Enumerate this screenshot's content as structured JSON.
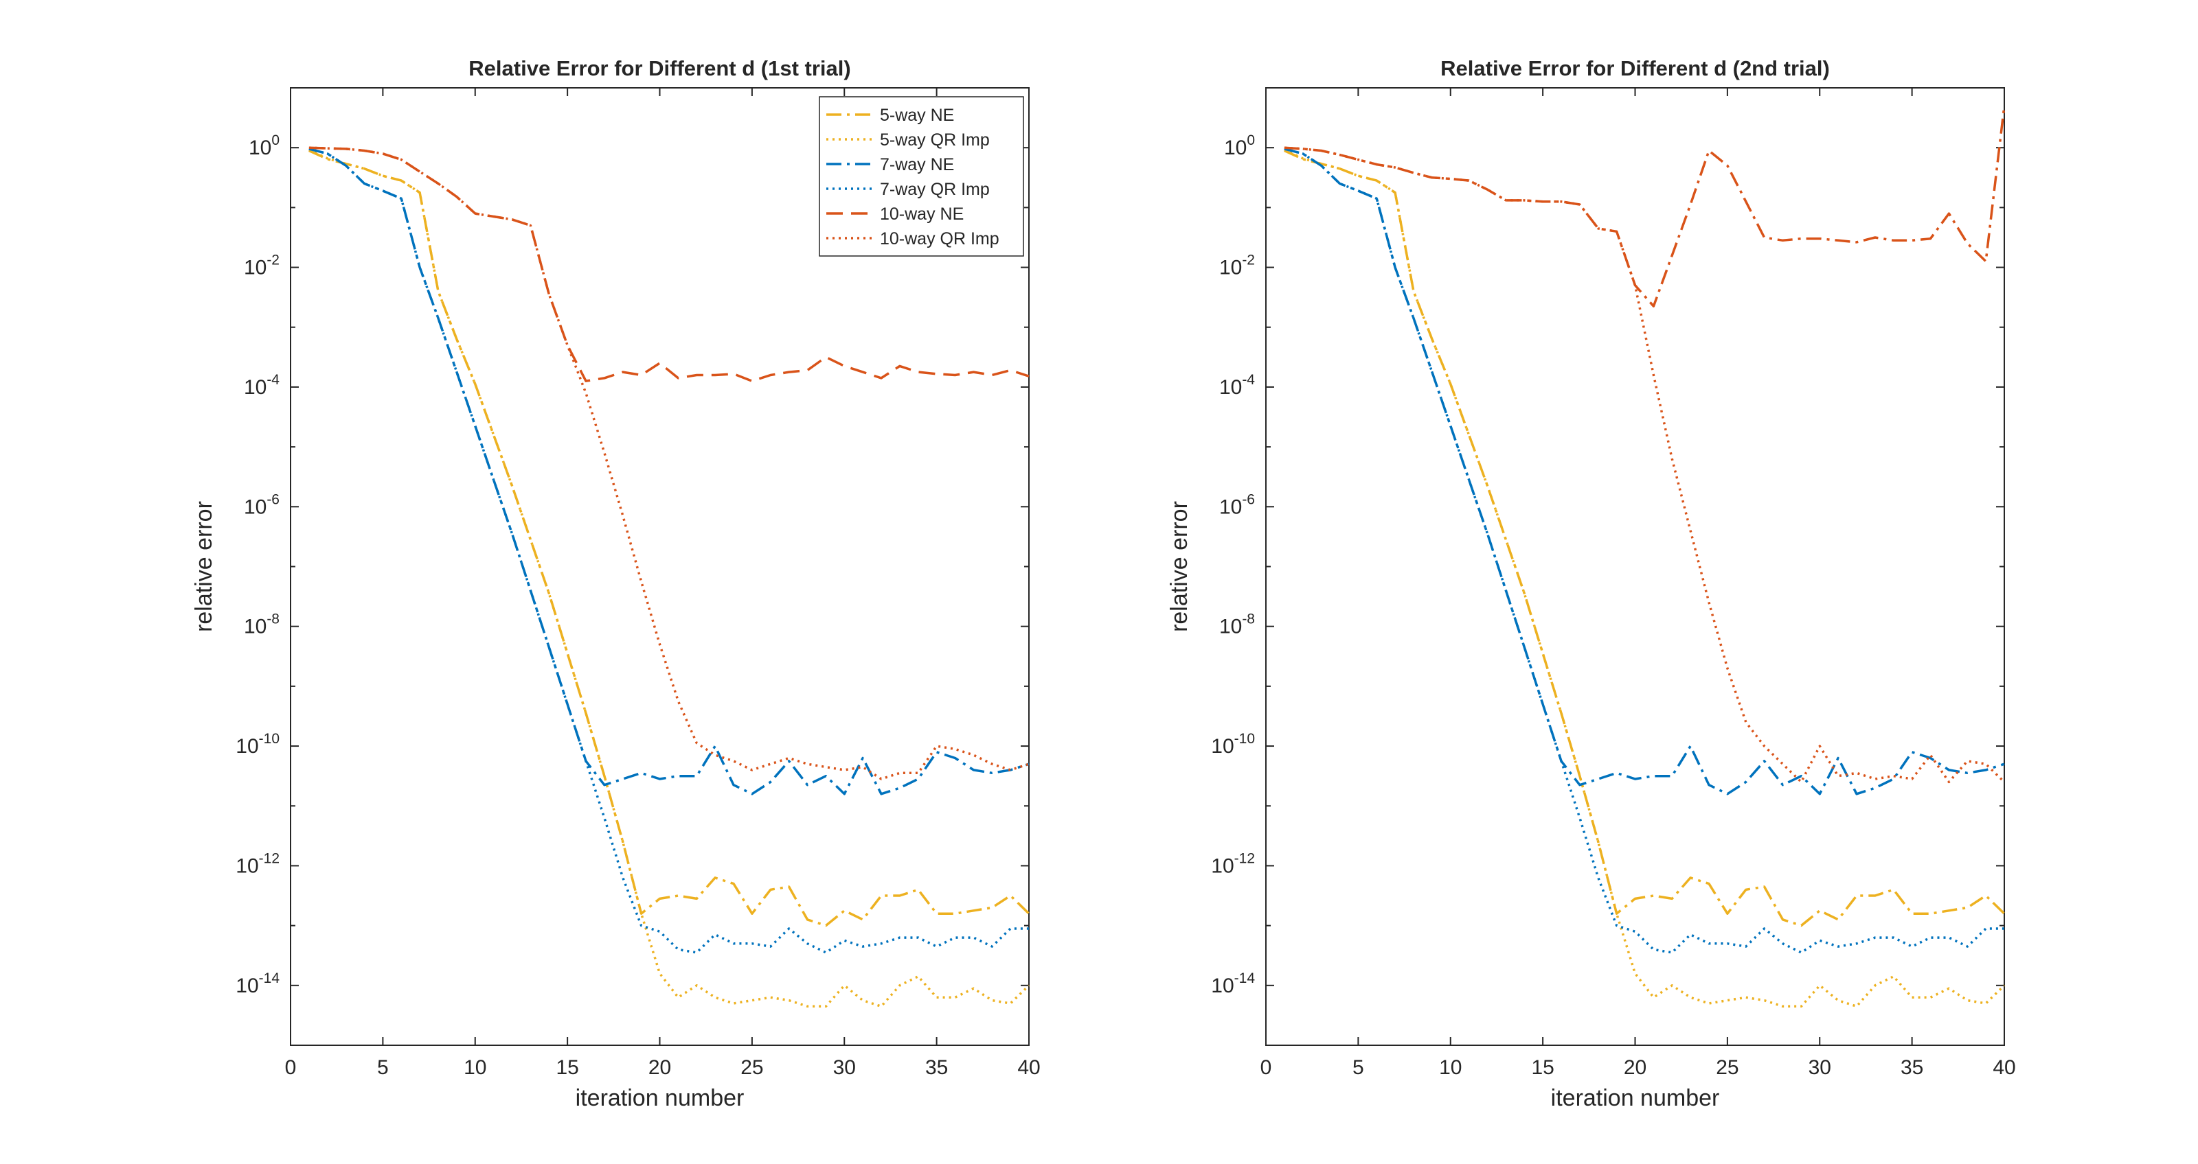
{
  "chart_data": [
    {
      "type": "line",
      "title": "Relative Error for Different d (1st trial)",
      "xlabel": "iteration number",
      "ylabel": "relative error",
      "xlim": [
        0,
        40
      ],
      "ylim_log10": [
        -15,
        1
      ],
      "yscale": "log",
      "xticks": [
        "0",
        "5",
        "10",
        "15",
        "20",
        "25",
        "30",
        "35",
        "40"
      ],
      "yticks": [
        {
          "base": "10",
          "exp": "0"
        },
        {
          "base": "10",
          "exp": "-2"
        },
        {
          "base": "10",
          "exp": "-4"
        },
        {
          "base": "10",
          "exp": "-6"
        },
        {
          "base": "10",
          "exp": "-8"
        },
        {
          "base": "10",
          "exp": "-10"
        },
        {
          "base": "10",
          "exp": "-12"
        },
        {
          "base": "10",
          "exp": "-14"
        }
      ],
      "grid": false,
      "legend_position": "top-right",
      "legend_entries": [
        "5-way NE",
        "5-way QR Imp",
        "7-way NE",
        "7-way QR Imp",
        "10-way NE",
        "10-way QR Imp"
      ],
      "x": [
        1,
        2,
        3,
        4,
        5,
        6,
        7,
        8,
        9,
        10,
        11,
        12,
        13,
        14,
        15,
        16,
        17,
        18,
        19,
        20,
        21,
        22,
        23,
        24,
        25,
        26,
        27,
        28,
        29,
        30,
        31,
        32,
        33,
        34,
        35,
        36,
        37,
        38,
        39,
        40
      ],
      "series": [
        {
          "name": "5-way NE",
          "color": "#EDB120",
          "dash": "dashdot",
          "log10_values": [
            -0.05,
            -0.19,
            -0.27,
            -0.35,
            -0.47,
            -0.55,
            -0.75,
            -2.4,
            -3.2,
            -3.95,
            -4.8,
            -5.65,
            -6.55,
            -7.45,
            -8.45,
            -9.45,
            -10.5,
            -11.6,
            -12.8,
            -12.55,
            -12.5,
            -12.55,
            -12.2,
            -12.3,
            -12.8,
            -12.4,
            -12.35,
            -12.9,
            -13.0,
            -12.75,
            -12.9,
            -12.5,
            -12.5,
            -12.4,
            -12.8,
            -12.8,
            -12.75,
            -12.7,
            -12.5,
            -12.8
          ]
        },
        {
          "name": "5-way QR Imp",
          "color": "#EDB120",
          "dash": "dotted",
          "log10_values": [
            -0.04,
            -0.18,
            -0.27,
            -0.35,
            -0.47,
            -0.55,
            -0.75,
            -2.4,
            -3.2,
            -3.95,
            -4.8,
            -5.65,
            -6.55,
            -7.45,
            -8.45,
            -9.45,
            -10.5,
            -11.6,
            -12.8,
            -13.8,
            -14.2,
            -14.0,
            -14.2,
            -14.3,
            -14.25,
            -14.2,
            -14.25,
            -14.35,
            -14.35,
            -14.0,
            -14.25,
            -14.35,
            -14.0,
            -13.85,
            -14.2,
            -14.2,
            -14.05,
            -14.25,
            -14.3,
            -14.0
          ]
        },
        {
          "name": "7-way NE",
          "color": "#0072BD",
          "dash": "dashdot",
          "log10_values": [
            -0.02,
            -0.1,
            -0.3,
            -0.6,
            -0.72,
            -0.85,
            -2.0,
            -2.85,
            -3.75,
            -4.65,
            -5.55,
            -6.45,
            -7.4,
            -8.35,
            -9.3,
            -10.25,
            -10.65,
            -10.55,
            -10.45,
            -10.55,
            -10.5,
            -10.5,
            -10.0,
            -10.65,
            -10.8,
            -10.6,
            -10.25,
            -10.65,
            -10.5,
            -10.8,
            -10.2,
            -10.8,
            -10.7,
            -10.55,
            -10.1,
            -10.2,
            -10.4,
            -10.45,
            -10.4,
            -10.3
          ]
        },
        {
          "name": "7-way QR Imp",
          "color": "#0072BD",
          "dash": "dotted",
          "log10_values": [
            -0.02,
            -0.1,
            -0.3,
            -0.6,
            -0.72,
            -0.85,
            -2.0,
            -2.85,
            -3.75,
            -4.65,
            -5.55,
            -6.45,
            -7.4,
            -8.35,
            -9.3,
            -10.25,
            -11.2,
            -12.2,
            -13.0,
            -13.1,
            -13.4,
            -13.45,
            -13.15,
            -13.3,
            -13.3,
            -13.35,
            -13.05,
            -13.3,
            -13.45,
            -13.25,
            -13.35,
            -13.3,
            -13.2,
            -13.2,
            -13.35,
            -13.2,
            -13.2,
            -13.35,
            -13.05,
            -13.05
          ]
        },
        {
          "name": "10-way NE",
          "color": "#D95319",
          "dash": "dashed",
          "log10_values": [
            0.0,
            -0.01,
            -0.02,
            -0.05,
            -0.1,
            -0.2,
            -0.4,
            -0.6,
            -0.82,
            -1.1,
            -1.15,
            -1.2,
            -1.3,
            -2.45,
            -3.3,
            -3.9,
            -3.85,
            -3.75,
            -3.8,
            -3.6,
            -3.85,
            -3.8,
            -3.8,
            -3.78,
            -3.9,
            -3.8,
            -3.75,
            -3.72,
            -3.5,
            -3.65,
            -3.75,
            -3.85,
            -3.65,
            -3.75,
            -3.78,
            -3.8,
            -3.75,
            -3.8,
            -3.72,
            -3.82
          ]
        },
        {
          "name": "10-way QR Imp",
          "color": "#D95319",
          "dash": "dotted",
          "log10_values": [
            0.0,
            -0.01,
            -0.02,
            -0.05,
            -0.1,
            -0.2,
            -0.4,
            -0.6,
            -0.82,
            -1.1,
            -1.15,
            -1.2,
            -1.3,
            -2.45,
            -3.3,
            -4.1,
            -5.1,
            -6.15,
            -7.25,
            -8.3,
            -9.25,
            -9.95,
            -10.15,
            -10.25,
            -10.4,
            -10.3,
            -10.2,
            -10.3,
            -10.35,
            -10.4,
            -10.35,
            -10.55,
            -10.45,
            -10.45,
            -10.0,
            -10.05,
            -10.15,
            -10.3,
            -10.4,
            -10.3
          ]
        }
      ]
    },
    {
      "type": "line",
      "title": "Relative Error for Different d (2nd trial)",
      "xlabel": "iteration number",
      "ylabel": "relative error",
      "xlim": [
        0,
        40
      ],
      "ylim_log10": [
        -15,
        1
      ],
      "yscale": "log",
      "xticks": [
        "0",
        "5",
        "10",
        "15",
        "20",
        "25",
        "30",
        "35",
        "40"
      ],
      "yticks": [
        {
          "base": "10",
          "exp": "0"
        },
        {
          "base": "10",
          "exp": "-2"
        },
        {
          "base": "10",
          "exp": "-4"
        },
        {
          "base": "10",
          "exp": "-6"
        },
        {
          "base": "10",
          "exp": "-8"
        },
        {
          "base": "10",
          "exp": "-10"
        },
        {
          "base": "10",
          "exp": "-12"
        },
        {
          "base": "10",
          "exp": "-14"
        }
      ],
      "grid": false,
      "legend_position": "none",
      "x": [
        1,
        2,
        3,
        4,
        5,
        6,
        7,
        8,
        9,
        10,
        11,
        12,
        13,
        14,
        15,
        16,
        17,
        18,
        19,
        20,
        21,
        22,
        23,
        24,
        25,
        26,
        27,
        28,
        29,
        30,
        31,
        32,
        33,
        34,
        35,
        36,
        37,
        38,
        39,
        40
      ],
      "series": [
        {
          "name": "5-way NE",
          "color": "#EDB120",
          "dash": "dashdot",
          "log10_values": [
            -0.05,
            -0.19,
            -0.27,
            -0.35,
            -0.47,
            -0.55,
            -0.75,
            -2.4,
            -3.2,
            -3.95,
            -4.8,
            -5.65,
            -6.55,
            -7.45,
            -8.45,
            -9.45,
            -10.5,
            -11.6,
            -12.8,
            -12.55,
            -12.5,
            -12.55,
            -12.2,
            -12.3,
            -12.8,
            -12.4,
            -12.35,
            -12.9,
            -13.0,
            -12.75,
            -12.9,
            -12.5,
            -12.5,
            -12.4,
            -12.8,
            -12.8,
            -12.75,
            -12.7,
            -12.5,
            -12.8
          ]
        },
        {
          "name": "5-way QR Imp",
          "color": "#EDB120",
          "dash": "dotted",
          "log10_values": [
            -0.04,
            -0.18,
            -0.27,
            -0.35,
            -0.47,
            -0.55,
            -0.75,
            -2.4,
            -3.2,
            -3.95,
            -4.8,
            -5.65,
            -6.55,
            -7.45,
            -8.45,
            -9.45,
            -10.5,
            -11.6,
            -12.8,
            -13.8,
            -14.2,
            -14.0,
            -14.2,
            -14.3,
            -14.25,
            -14.2,
            -14.25,
            -14.35,
            -14.35,
            -14.0,
            -14.25,
            -14.35,
            -14.0,
            -13.85,
            -14.2,
            -14.2,
            -14.05,
            -14.25,
            -14.3,
            -14.0
          ]
        },
        {
          "name": "7-way NE",
          "color": "#0072BD",
          "dash": "dashdot",
          "log10_values": [
            -0.02,
            -0.1,
            -0.3,
            -0.6,
            -0.72,
            -0.85,
            -2.0,
            -2.85,
            -3.75,
            -4.65,
            -5.55,
            -6.45,
            -7.4,
            -8.35,
            -9.3,
            -10.25,
            -10.65,
            -10.55,
            -10.45,
            -10.55,
            -10.5,
            -10.5,
            -10.0,
            -10.65,
            -10.8,
            -10.6,
            -10.25,
            -10.65,
            -10.5,
            -10.8,
            -10.2,
            -10.8,
            -10.7,
            -10.55,
            -10.1,
            -10.2,
            -10.4,
            -10.45,
            -10.4,
            -10.3
          ]
        },
        {
          "name": "7-way QR Imp",
          "color": "#0072BD",
          "dash": "dotted",
          "log10_values": [
            -0.02,
            -0.1,
            -0.3,
            -0.6,
            -0.72,
            -0.85,
            -2.0,
            -2.85,
            -3.75,
            -4.65,
            -5.55,
            -6.45,
            -7.4,
            -8.35,
            -9.3,
            -10.25,
            -11.2,
            -12.2,
            -13.0,
            -13.1,
            -13.4,
            -13.45,
            -13.15,
            -13.3,
            -13.3,
            -13.35,
            -13.05,
            -13.3,
            -13.45,
            -13.25,
            -13.35,
            -13.3,
            -13.2,
            -13.2,
            -13.35,
            -13.2,
            -13.2,
            -13.35,
            -13.05,
            -13.05
          ]
        },
        {
          "name": "10-way NE",
          "color": "#D95319",
          "dash": "dashdot",
          "log10_values": [
            0.0,
            -0.02,
            -0.05,
            -0.12,
            -0.2,
            -0.28,
            -0.33,
            -0.42,
            -0.5,
            -0.52,
            -0.55,
            -0.7,
            -0.88,
            -0.88,
            -0.9,
            -0.9,
            -0.95,
            -1.35,
            -1.4,
            -2.3,
            -2.65,
            -1.8,
            -0.95,
            -0.05,
            -0.3,
            -0.9,
            -1.5,
            -1.55,
            -1.52,
            -1.52,
            -1.55,
            -1.58,
            -1.5,
            -1.55,
            -1.55,
            -1.52,
            -1.1,
            -1.6,
            -1.9,
            0.7
          ]
        },
        {
          "name": "10-way QR Imp",
          "color": "#D95319",
          "dash": "dotted",
          "log10_values": [
            0.0,
            -0.02,
            -0.05,
            -0.12,
            -0.2,
            -0.28,
            -0.33,
            -0.42,
            -0.5,
            -0.52,
            -0.55,
            -0.7,
            -0.88,
            -0.88,
            -0.9,
            -0.9,
            -0.95,
            -1.35,
            -1.4,
            -2.3,
            -3.8,
            -5.2,
            -6.4,
            -7.6,
            -8.7,
            -9.6,
            -10.0,
            -10.3,
            -10.6,
            -10.0,
            -10.5,
            -10.45,
            -10.55,
            -10.5,
            -10.55,
            -10.15,
            -10.6,
            -10.25,
            -10.3,
            -10.6
          ]
        }
      ]
    }
  ]
}
